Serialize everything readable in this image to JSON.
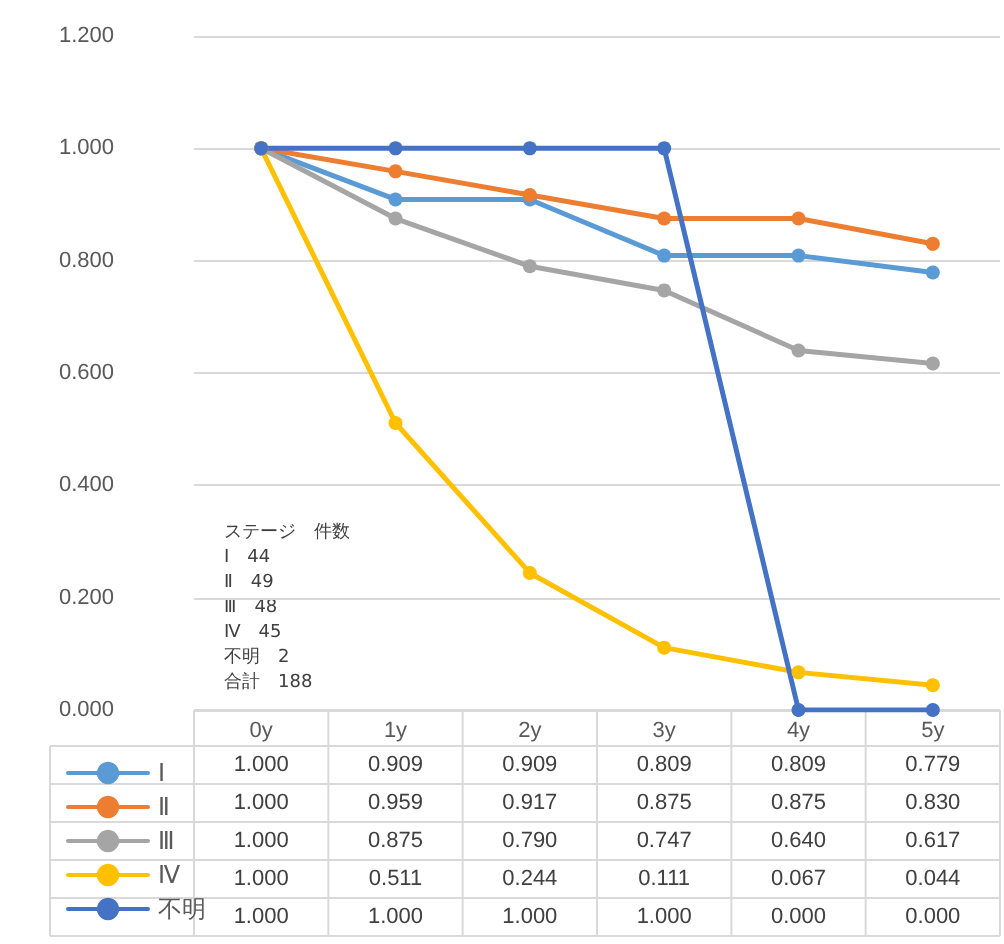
{
  "chart_data": {
    "type": "line",
    "categories": [
      "0y",
      "1y",
      "2y",
      "3y",
      "4y",
      "5y"
    ],
    "series": [
      {
        "name": "Ⅰ",
        "color": "#5b9bd5",
        "values": [
          1.0,
          0.909,
          0.909,
          0.809,
          0.809,
          0.779
        ],
        "value_labels": [
          "1.000",
          "0.909",
          "0.909",
          "0.809",
          "0.809",
          "0.779"
        ]
      },
      {
        "name": "Ⅱ",
        "color": "#ed7d31",
        "values": [
          1.0,
          0.959,
          0.917,
          0.875,
          0.875,
          0.83
        ],
        "value_labels": [
          "1.000",
          "0.959",
          "0.917",
          "0.875",
          "0.875",
          "0.830"
        ]
      },
      {
        "name": "Ⅲ",
        "color": "#a5a5a5",
        "values": [
          1.0,
          0.875,
          0.79,
          0.747,
          0.64,
          0.617
        ],
        "value_labels": [
          "1.000",
          "0.875",
          "0.790",
          "0.747",
          "0.640",
          "0.617"
        ]
      },
      {
        "name": "Ⅳ",
        "color": "#ffc000",
        "values": [
          1.0,
          0.511,
          0.244,
          0.111,
          0.067,
          0.044
        ],
        "value_labels": [
          "1.000",
          "0.511",
          "0.244",
          "0.111",
          "0.067",
          "0.044"
        ]
      },
      {
        "name": "不明",
        "color": "#4472c4",
        "values": [
          1.0,
          1.0,
          1.0,
          1.0,
          0.0,
          0.0
        ],
        "value_labels": [
          "1.000",
          "1.000",
          "1.000",
          "1.000",
          "0.000",
          "0.000"
        ]
      }
    ],
    "ylim": [
      0,
      1.2
    ],
    "yticks": [
      {
        "value": 0,
        "label": "0.000"
      },
      {
        "value": 0.2,
        "label": "0.200"
      },
      {
        "value": 0.4,
        "label": "0.400"
      },
      {
        "value": 0.6,
        "label": "0.600"
      },
      {
        "value": 0.8,
        "label": "0.800"
      },
      {
        "value": 1.0,
        "label": "1.000"
      },
      {
        "value": 1.2,
        "label": "1.200"
      }
    ],
    "grid": "y",
    "legend": "bottom",
    "marker": "circle",
    "line_style": "solid",
    "annotations": [
      "ステージ　件数",
      "Ⅰ　44",
      "Ⅱ　49",
      "Ⅲ　48",
      "Ⅳ　45",
      "不明　2",
      "合計　188"
    ]
  }
}
